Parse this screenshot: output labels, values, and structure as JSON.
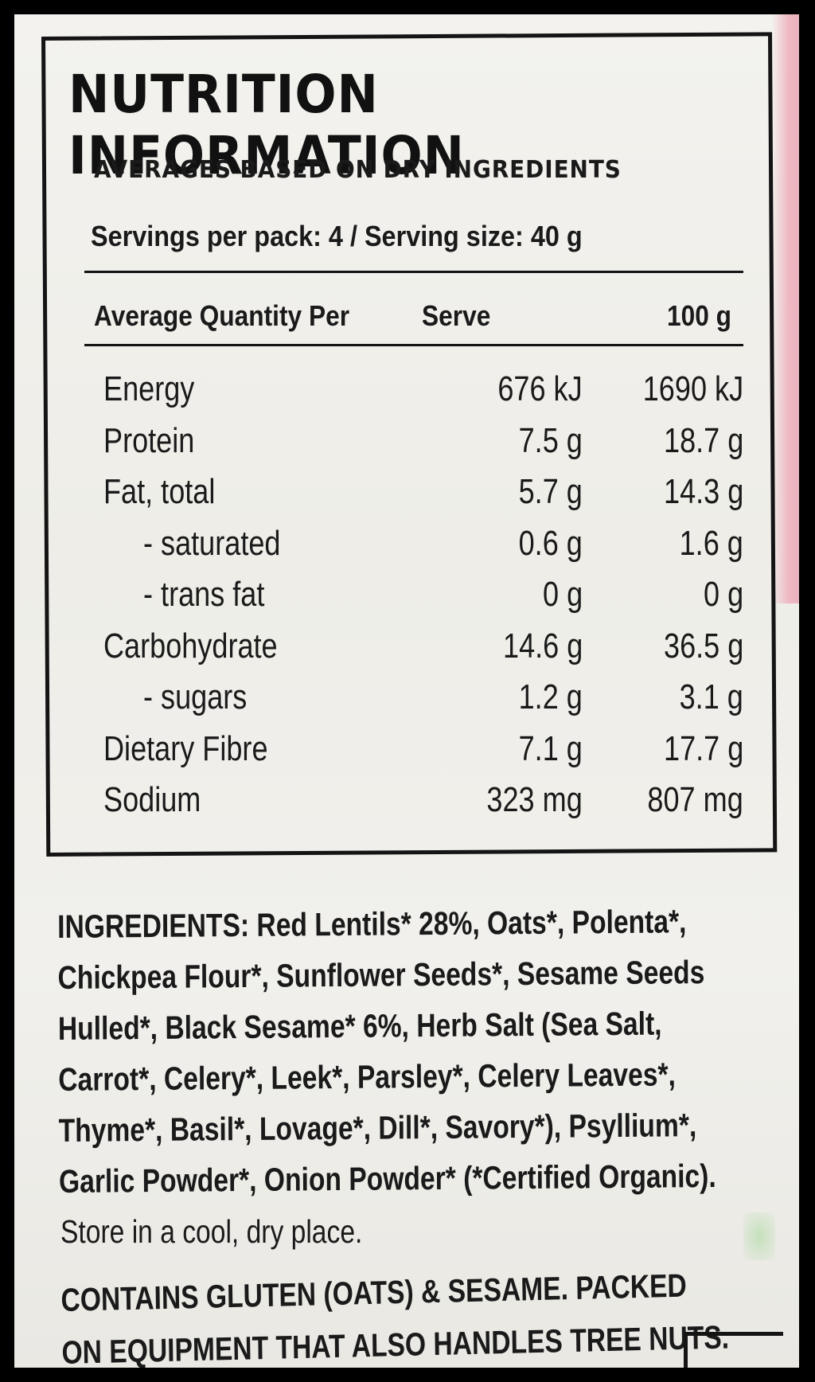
{
  "label": {
    "title": "NUTRITION INFORMATION",
    "subtitle": "AVERAGES BASED ON DRY INGREDIENTS",
    "servings": "Servings per pack: 4 / Serving size: 40 g",
    "table_headers": [
      "Average Quantity Per",
      "Serve",
      "100 g"
    ],
    "rows": [
      {
        "label": "Energy",
        "serve": "676 kJ",
        "per100": "1690 kJ"
      },
      {
        "label": "Protein",
        "serve": "7.5 g",
        "per100": "18.7 g"
      },
      {
        "label": "Fat, total",
        "serve": "5.7 g",
        "per100": "14.3 g"
      },
      {
        "label": "- saturated",
        "serve": "0.6 g",
        "per100": "1.6 g"
      },
      {
        "label": "- trans fat",
        "serve": "0 g",
        "per100": "0 g"
      },
      {
        "label": "Carbohydrate",
        "serve": "14.6 g",
        "per100": "36.5 g"
      },
      {
        "label": "- sugars",
        "serve": "1.2 g",
        "per100": "3.1 g"
      },
      {
        "label": "Dietary Fibre",
        "serve": "7.1 g",
        "per100": "17.7 g"
      },
      {
        "label": "Sodium",
        "serve": "323 mg",
        "per100": "807 mg"
      }
    ],
    "ingredients_lines": [
      "INGREDIENTS: Red Lentils* 28%, Oats*, Polenta*,",
      "Chickpea Flour*, Sunflower Seeds*, Sesame Seeds",
      "Hulled*, Black Sesame* 6%, Herb Salt (Sea Salt,",
      "Carrot*, Celery*, Leek*, Parsley*, Celery Leaves*,",
      "Thyme*, Basil*, Lovage*, Dill*, Savory*), Psyllium*,",
      "Garlic Powder*, Onion Powder* (*Certified Organic)."
    ],
    "storage": "Store in a cool, dry place.",
    "allergen_lines": [
      "CONTAINS GLUTEN (OATS) & SESAME. PACKED",
      "ON EQUIPMENT THAT ALSO HANDLES TREE NUTS."
    ]
  }
}
